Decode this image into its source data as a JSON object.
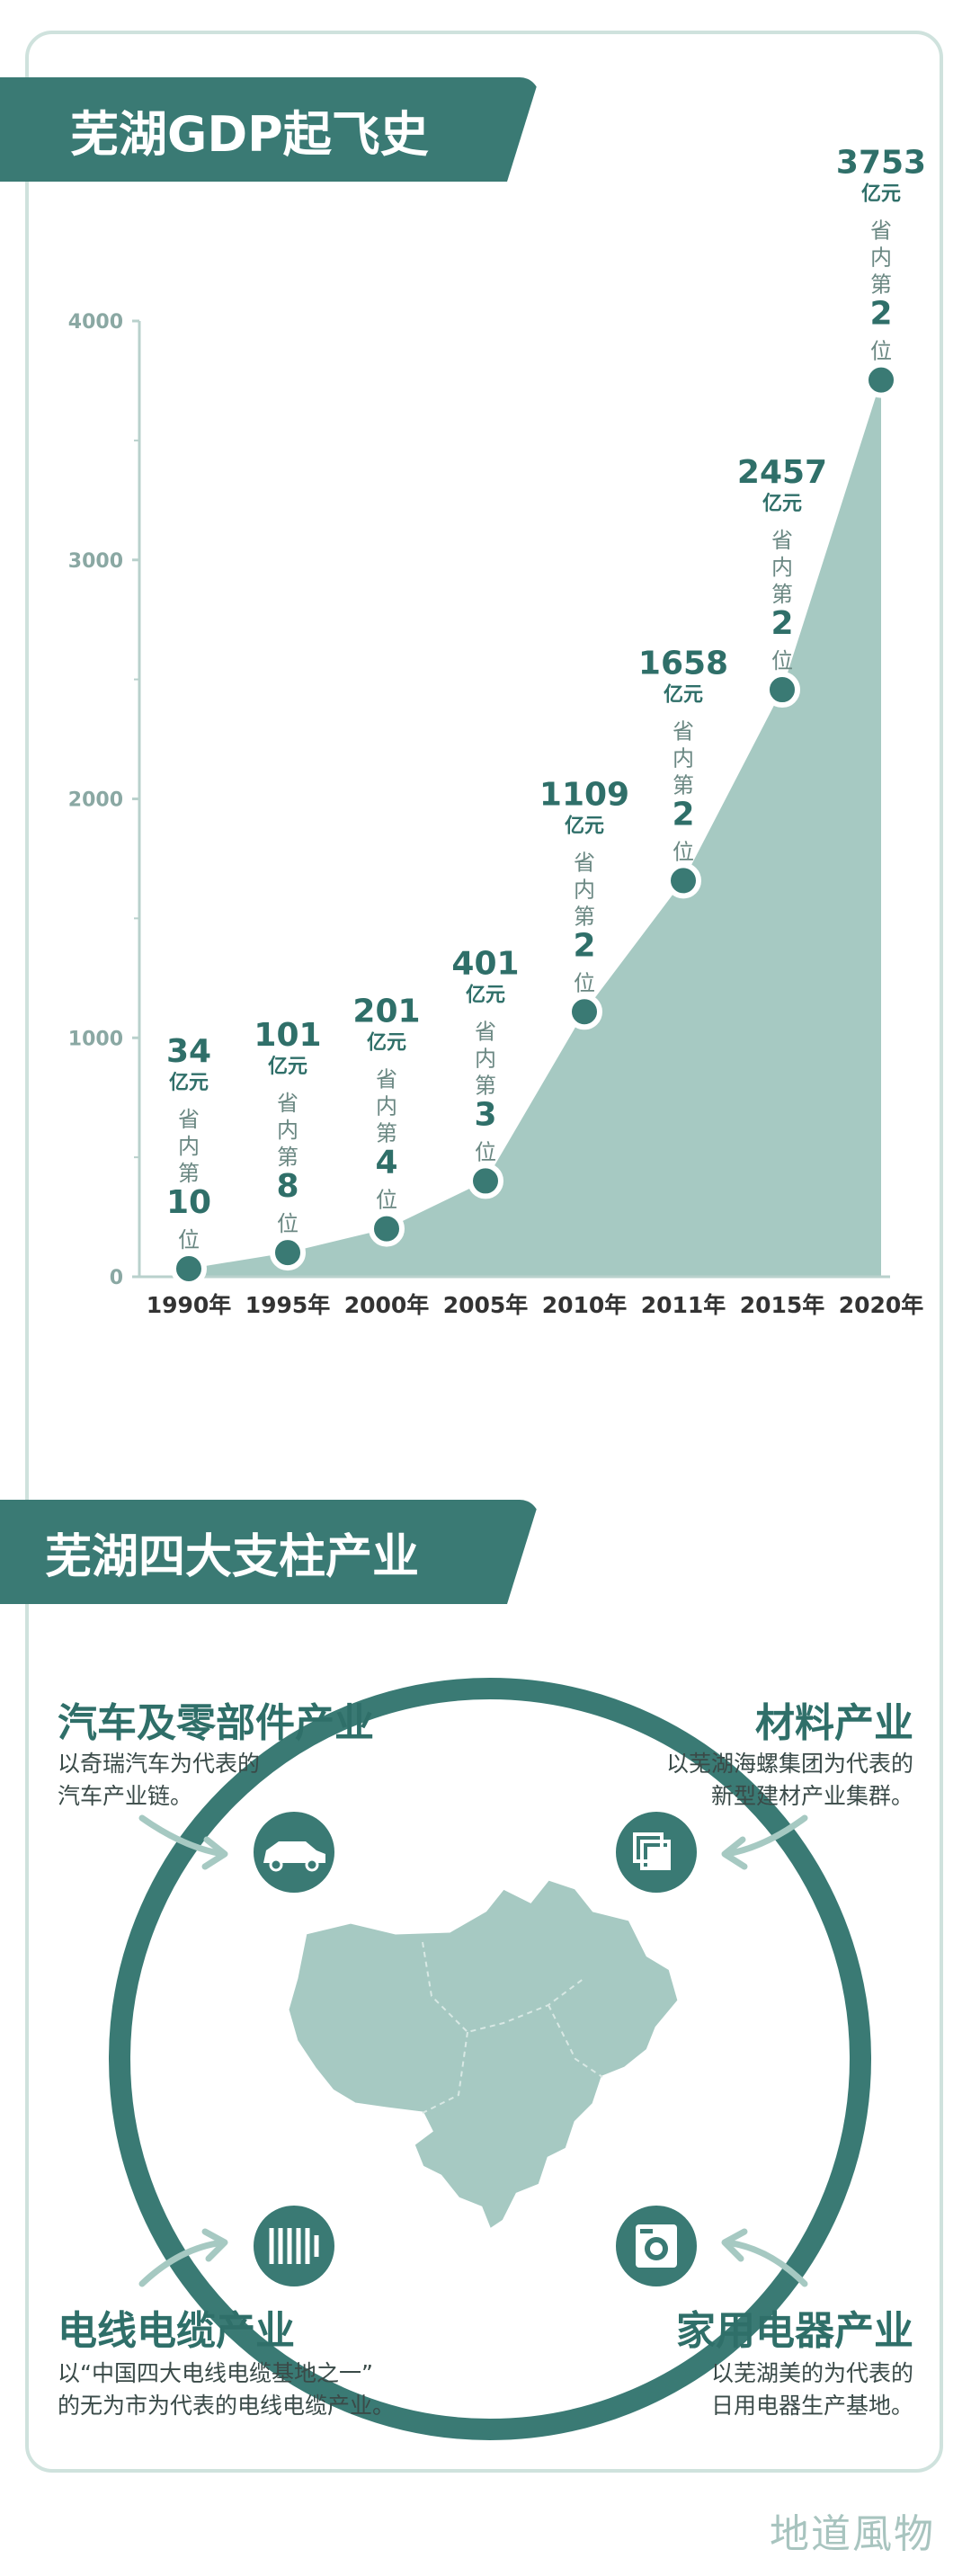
{
  "title1": "芜湖GDP起飞史",
  "title2": "芜湖四大支柱产业",
  "chart_data": {
    "type": "area",
    "x": [
      "1990年",
      "1995年",
      "2000年",
      "2005年",
      "2010年",
      "2011年",
      "2015年",
      "2020年"
    ],
    "values": [
      34,
      101,
      201,
      401,
      1109,
      1658,
      2457,
      3753
    ],
    "value_unit": "亿元",
    "rank_prefix": "省内第",
    "rank_suffix": "位",
    "ranks": [
      10,
      8,
      4,
      3,
      2,
      2,
      2,
      2
    ],
    "ylim": [
      0,
      4000
    ],
    "yticks": [
      0,
      1000,
      2000,
      3000,
      4000
    ],
    "colors": {
      "area": "#a6c9c2",
      "point": "#3a7a74",
      "axis": "#b9d1cc",
      "label": "#2f6f69"
    }
  },
  "industries": [
    {
      "name": "汽车及零部件产业",
      "desc": [
        "以奇瑞汽车为代表的",
        "汽车产业链。"
      ],
      "icon": "car-icon"
    },
    {
      "name": "材料产业",
      "desc": [
        "以芜湖海螺集团为代表的",
        "新型建材产业集群。"
      ],
      "icon": "building-materials-icon"
    },
    {
      "name": "电线电缆产业",
      "desc": [
        "以“中国四大电线电缆基地之一”",
        "的无为市为代表的电线电缆产业。"
      ],
      "icon": "cable-icon"
    },
    {
      "name": "家用电器产业",
      "desc": [
        "以芜湖美的为代表的",
        "日用电器生产基地。"
      ],
      "icon": "washing-machine-icon"
    }
  ],
  "brand": "地道風物"
}
